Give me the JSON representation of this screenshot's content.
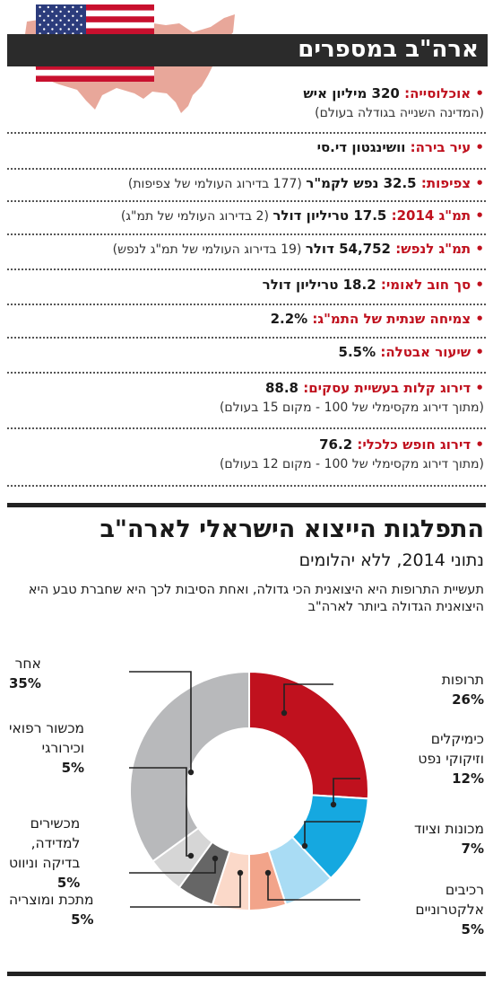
{
  "header": {
    "title": "ארה\"ב במספרים"
  },
  "facts": [
    {
      "label": "אוכלוסייה:",
      "value": "320 מיליון איש",
      "note": "",
      "sub": "(המדינה השנייה בגודלה בעולם)"
    },
    {
      "label": "עיר בירה:",
      "value": "וושינגטון די.סי",
      "note": "",
      "sub": ""
    },
    {
      "label": "צפיפות:",
      "value": "32.5 נפש לקמ\"ר",
      "note": "(177 בדירוג העולמי של צפיפות)",
      "sub": ""
    },
    {
      "label": "תמ\"ג 2014:",
      "value": "17.5 טריליון דולר",
      "note": "(2 בדירוג העולמי של תמ\"ג)",
      "sub": ""
    },
    {
      "label": "תמ\"ג לנפש:",
      "value": "54,752 דולר",
      "note": "(19 בדירוג העולמי של תמ\"ג לנפש)",
      "sub": ""
    },
    {
      "label": "סך חוב לאומי:",
      "value": "18.2 טריליון דולר",
      "note": "",
      "sub": ""
    },
    {
      "label": "צמיחה שנתית של התמ\"ג:",
      "value": "2.2%",
      "note": "",
      "sub": ""
    },
    {
      "label": "שיעור אבטלה:",
      "value": "5.5%",
      "note": "",
      "sub": ""
    },
    {
      "label": "דירוג קלות בעשיית עסקים:",
      "value": "88.8",
      "note": "",
      "sub": "(מתוך דירוג מקסימלי של 100 - מקום 15 בעולם)"
    },
    {
      "label": "דירוג חופש כלכלי:",
      "value": "76.2",
      "note": "",
      "sub": "(מתוך דירוג מקסימלי של 100 - מקום 12 בעולם)"
    }
  ],
  "bullet": "•",
  "section2": {
    "title": "התפלגות הייצוא הישראלי לארה\"ב",
    "subtitle": "נתוני 2014, ללא יהלומים",
    "description": "תעשיית התרופות היא היצואנית הכי גדולה, ואחת הסיבות לכך היא שחברת טבע היא היצואנית הגדולה ביותר לארה\"ב"
  },
  "chart_data": {
    "type": "pie",
    "title": "התפלגות הייצוא הישראלי לארה\"ב",
    "subtitle": "נתוני 2014, ללא יהלומים",
    "series": [
      {
        "label": "תרופות",
        "label_lines": [
          "תרופות"
        ],
        "value": 26,
        "pct": "26%",
        "color": "#c0111e"
      },
      {
        "label": "כימיקלים וזיקוקי נפט",
        "label_lines": [
          "כימיקלים",
          "וזיקוקי נפט"
        ],
        "value": 12,
        "pct": "12%",
        "color": "#15a8e0"
      },
      {
        "label": "מכונות וציוד",
        "label_lines": [
          "מכונות וציוד"
        ],
        "value": 7,
        "pct": "7%",
        "color": "#a9dcf4"
      },
      {
        "label": "רכיבים אלקטרוניים",
        "label_lines": [
          "רכיבים",
          "אלקטרוניים"
        ],
        "value": 5,
        "pct": "5%",
        "color": "#f2a48a"
      },
      {
        "label": "מתכת ומוצריה",
        "label_lines": [
          "מתכת ומוצריה"
        ],
        "value": 5,
        "pct": "5%",
        "color": "#fbd9c9"
      },
      {
        "label": "מכשירים למדידה, בדיקה וניווט",
        "label_lines": [
          "מכשירים",
          "למדידה,",
          "בדיקה וניווט"
        ],
        "value": 5,
        "pct": "5%",
        "color": "#666666"
      },
      {
        "label": "מכשור רפואי וכירורגי",
        "label_lines": [
          "מכשור רפואי",
          "וכירורגי"
        ],
        "value": 5,
        "pct": "5%",
        "color": "#d6d6d6"
      },
      {
        "label": "אחר",
        "label_lines": [
          "אחר"
        ],
        "value": 35,
        "pct": "35%",
        "color": "#b8b9bb"
      }
    ]
  },
  "colors": {
    "accent": "#c0111e",
    "dark": "#2b2b2b",
    "map": "#e8a79a"
  },
  "icons": {
    "map": "usa-map-icon",
    "flag": "us-flag-icon"
  }
}
